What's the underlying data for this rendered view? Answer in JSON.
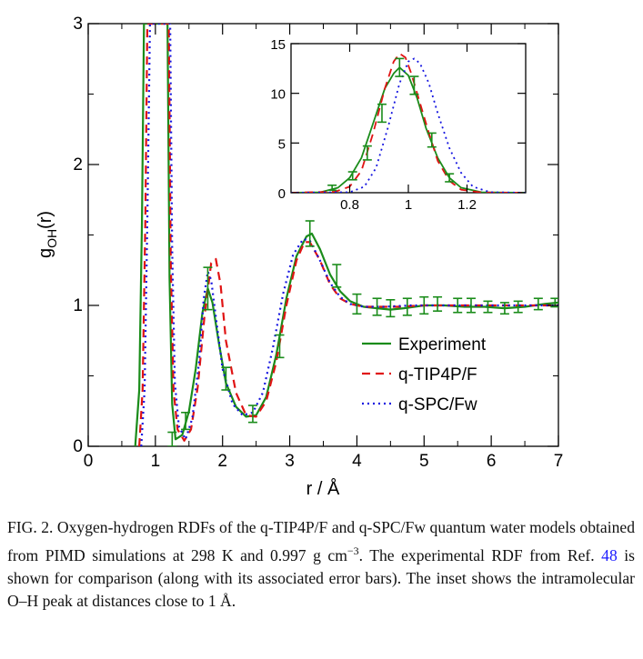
{
  "figure_caption": {
    "label": "FIG. 2.",
    "text_part1": " Oxygen-hydrogen RDFs of the q-TIP4P/F and q-SPC/Fw quantum water models obtained from PIMD simulations at 298 K and 0.997  g cm",
    "superscript": "−3",
    "text_part2": ". The experimental RDF from Ref. ",
    "ref_number": "48",
    "text_part3": " is shown for comparison (along with its associated error bars). The inset shows the intramolecular O–H peak at distances close to 1 Å."
  },
  "colors": {
    "experiment": "#1a8c1a",
    "q_tip4p_f": "#e01414",
    "q_spc_fw": "#1414e0",
    "axis": "#000000",
    "caption_link": "#1a1aff"
  },
  "chart_data": [
    {
      "id": "main",
      "type": "line",
      "xlabel": "r / Å",
      "ylabel_main": "g",
      "ylabel_sub": "OH",
      "ylabel_tail": "(r)",
      "xlim": [
        0,
        7
      ],
      "ylim": [
        0,
        3
      ],
      "xticks": [
        0,
        1,
        2,
        3,
        4,
        5,
        6,
        7
      ],
      "xtick_labels": [
        "0",
        "1",
        "2",
        "3",
        "4",
        "5",
        "6",
        "7"
      ],
      "yticks": [
        0,
        1,
        2,
        3
      ],
      "ytick_labels": [
        "0",
        "1",
        "2",
        "3"
      ],
      "grid": false,
      "legend_position": "lower-right",
      "series": [
        {
          "name": "Experiment",
          "style": "solid",
          "x": [
            0.7,
            0.76,
            0.8,
            0.83,
            1.18,
            1.21,
            1.25,
            1.3,
            1.4,
            1.5,
            1.6,
            1.7,
            1.78,
            1.85,
            1.95,
            2.05,
            2.2,
            2.35,
            2.5,
            2.65,
            2.8,
            2.95,
            3.1,
            3.25,
            3.33,
            3.45,
            3.6,
            3.75,
            3.9,
            4.1,
            4.3,
            4.5,
            4.7,
            5.0,
            5.3,
            5.6,
            5.9,
            6.2,
            6.5,
            6.8,
            7.0
          ],
          "y": [
            0.0,
            0.4,
            1.6,
            3.0,
            3.0,
            1.2,
            0.3,
            0.05,
            0.08,
            0.25,
            0.55,
            0.95,
            1.12,
            1.02,
            0.72,
            0.45,
            0.28,
            0.21,
            0.22,
            0.35,
            0.65,
            1.05,
            1.35,
            1.49,
            1.51,
            1.4,
            1.22,
            1.1,
            1.03,
            0.99,
            0.98,
            0.97,
            0.98,
            1.0,
            1.0,
            0.99,
            0.99,
            0.98,
            0.99,
            1.01,
            1.02
          ]
        },
        {
          "name": "q-TIP4P/F",
          "style": "dashed",
          "x": [
            0.76,
            0.81,
            0.85,
            0.88,
            1.2,
            1.23,
            1.27,
            1.33,
            1.43,
            1.53,
            1.63,
            1.73,
            1.83,
            1.9,
            1.97,
            2.05,
            2.2,
            2.35,
            2.5,
            2.65,
            2.8,
            2.95,
            3.1,
            3.22,
            3.3,
            3.45,
            3.6,
            3.75,
            3.9,
            4.1,
            4.3,
            4.6,
            5.0,
            5.5,
            6.0,
            6.5,
            7.0
          ],
          "y": [
            0.0,
            0.4,
            1.6,
            3.0,
            3.0,
            1.3,
            0.4,
            0.12,
            0.04,
            0.12,
            0.42,
            0.92,
            1.3,
            1.33,
            1.15,
            0.75,
            0.38,
            0.22,
            0.21,
            0.32,
            0.6,
            1.0,
            1.32,
            1.45,
            1.45,
            1.32,
            1.15,
            1.05,
            1.01,
            0.99,
            0.99,
            0.99,
            1.0,
            1.0,
            1.0,
            1.0,
            1.0
          ]
        },
        {
          "name": "q-SPC/Fw",
          "style": "dotted",
          "x": [
            0.79,
            0.84,
            0.88,
            0.92,
            1.22,
            1.25,
            1.29,
            1.35,
            1.45,
            1.55,
            1.65,
            1.72,
            1.78,
            1.83,
            1.9,
            2.0,
            2.15,
            2.3,
            2.45,
            2.6,
            2.75,
            2.9,
            3.05,
            3.2,
            3.3,
            3.45,
            3.6,
            3.75,
            3.9,
            4.1,
            4.4,
            4.8,
            5.2,
            5.8,
            6.4,
            7.0
          ],
          "y": [
            0.0,
            0.4,
            1.6,
            3.0,
            3.0,
            1.4,
            0.45,
            0.14,
            0.05,
            0.2,
            0.6,
            1.05,
            1.24,
            1.18,
            0.92,
            0.55,
            0.3,
            0.22,
            0.24,
            0.38,
            0.7,
            1.08,
            1.36,
            1.47,
            1.46,
            1.32,
            1.16,
            1.06,
            1.01,
            0.99,
            0.99,
            1.0,
            1.0,
            1.0,
            1.0,
            1.0
          ]
        }
      ],
      "error_bars": {
        "series": "Experiment",
        "x": [
          1.25,
          1.45,
          1.78,
          2.05,
          2.45,
          2.85,
          3.3,
          3.7,
          4.0,
          4.3,
          4.5,
          4.75,
          5.0,
          5.2,
          5.5,
          5.7,
          5.95,
          6.2,
          6.4,
          6.7,
          6.95
        ],
        "y": [
          0.05,
          0.18,
          1.12,
          0.48,
          0.23,
          0.71,
          1.51,
          1.21,
          1.01,
          0.99,
          0.98,
          0.99,
          1.0,
          1.01,
          1.0,
          1.0,
          0.99,
          0.98,
          0.99,
          1.01,
          1.02
        ],
        "err": [
          0.05,
          0.06,
          0.15,
          0.08,
          0.06,
          0.08,
          0.09,
          0.08,
          0.07,
          0.06,
          0.06,
          0.06,
          0.06,
          0.05,
          0.05,
          0.05,
          0.04,
          0.04,
          0.04,
          0.04,
          0.03
        ]
      }
    },
    {
      "id": "inset",
      "type": "line",
      "xlim": [
        0.6,
        1.4
      ],
      "ylim": [
        0,
        15
      ],
      "xticks": [
        0.8,
        1.0,
        1.2
      ],
      "xtick_labels": [
        "0.8",
        "1",
        "1.2"
      ],
      "yticks": [
        0,
        5,
        10,
        15
      ],
      "ytick_labels": [
        "0",
        "5",
        "10",
        "15"
      ],
      "grid": false,
      "series": [
        {
          "name": "Experiment",
          "style": "solid",
          "x": [
            0.6,
            0.7,
            0.76,
            0.8,
            0.84,
            0.88,
            0.92,
            0.95,
            0.97,
            1.0,
            1.03,
            1.06,
            1.1,
            1.14,
            1.18,
            1.25,
            1.4
          ],
          "y": [
            0.0,
            0.05,
            0.5,
            1.5,
            3.5,
            7.0,
            10.5,
            12.0,
            12.6,
            11.8,
            9.5,
            6.5,
            3.5,
            1.5,
            0.5,
            0.05,
            0.0
          ]
        },
        {
          "name": "q-TIP4P/F",
          "style": "dashed",
          "x": [
            0.6,
            0.75,
            0.8,
            0.84,
            0.88,
            0.92,
            0.95,
            0.97,
            0.99,
            1.01,
            1.04,
            1.07,
            1.1,
            1.14,
            1.18,
            1.25,
            1.4
          ],
          "y": [
            0.0,
            0.1,
            0.6,
            2.2,
            6.0,
            10.5,
            13.2,
            14.0,
            13.6,
            12.0,
            9.0,
            6.0,
            3.2,
            1.2,
            0.3,
            0.02,
            0.0
          ]
        },
        {
          "name": "q-SPC/Fw",
          "style": "dotted",
          "x": [
            0.6,
            0.8,
            0.85,
            0.89,
            0.93,
            0.97,
            1.0,
            1.02,
            1.04,
            1.07,
            1.1,
            1.14,
            1.18,
            1.22,
            1.28,
            1.4
          ],
          "y": [
            0.0,
            0.05,
            0.6,
            2.5,
            6.5,
            11.0,
            13.2,
            13.5,
            13.0,
            11.0,
            8.0,
            4.5,
            2.0,
            0.6,
            0.05,
            0.0
          ]
        }
      ],
      "error_bars": {
        "series": "Experiment",
        "x": [
          0.74,
          0.81,
          0.86,
          0.91,
          0.97,
          1.02,
          1.08,
          1.14
        ],
        "y": [
          0.5,
          1.7,
          4.0,
          8.0,
          12.6,
          10.8,
          5.3,
          1.5
        ],
        "err": [
          0.25,
          0.4,
          0.7,
          0.9,
          0.9,
          0.9,
          0.7,
          0.4
        ]
      }
    }
  ]
}
